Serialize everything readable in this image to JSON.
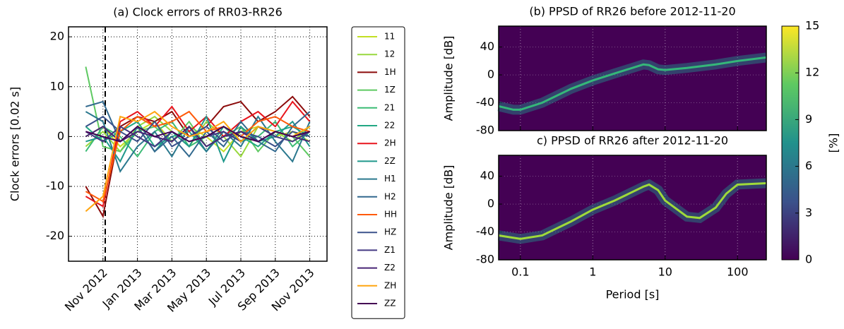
{
  "chart_data": [
    {
      "type": "line",
      "title": "(a) Clock errors of RR03-RR26",
      "ylabel": "Clock errors [0.02 s]",
      "x": [
        "2012-10",
        "2012-11",
        "2012-12",
        "2013-01",
        "2013-02",
        "2013-03",
        "2013-04",
        "2013-05",
        "2013-06",
        "2013-07",
        "2013-08",
        "2013-09",
        "2013-10",
        "2013-11"
      ],
      "xlim": [
        "2012-09",
        "2013-12"
      ],
      "xticks": [
        {
          "value": "2012-11",
          "label": "Nov 2012"
        },
        {
          "value": "2013-01",
          "label": "Jan 2013"
        },
        {
          "value": "2013-03",
          "label": "Mar 2013"
        },
        {
          "value": "2013-05",
          "label": "May 2013"
        },
        {
          "value": "2013-07",
          "label": "Jul 2013"
        },
        {
          "value": "2013-09",
          "label": "Sep 2013"
        },
        {
          "value": "2013-11",
          "label": "Nov 2013"
        }
      ],
      "ylim": [
        -25,
        22
      ],
      "yticks": [
        -20,
        -10,
        0,
        10,
        20
      ],
      "grid": true,
      "legend": "outside right",
      "series": [
        {
          "name": "11",
          "color": "#c2df23",
          "values": [
            0,
            2,
            -2,
            1,
            3,
            -1,
            2,
            0,
            -3,
            1,
            2,
            0,
            1,
            -1
          ]
        },
        {
          "name": "12",
          "color": "#98d83e",
          "values": [
            -2,
            1,
            -3,
            2,
            4,
            1,
            -2,
            3,
            0,
            -4,
            2,
            1,
            -1,
            2
          ]
        },
        {
          "name": "1H",
          "color": "#8b0a0a",
          "values": [
            -10,
            -16,
            2,
            4,
            3,
            5,
            0,
            2,
            6,
            7,
            3,
            5,
            8,
            4
          ]
        },
        {
          "name": "1Z",
          "color": "#5ec962",
          "values": [
            14,
            -2,
            -3,
            1,
            2,
            -1,
            3,
            -2,
            0,
            2,
            -3,
            1,
            0,
            -4
          ]
        },
        {
          "name": "21",
          "color": "#3bbb75",
          "values": [
            -3,
            2,
            0,
            -4,
            1,
            3,
            -2,
            0,
            2,
            -1,
            0,
            3,
            -2,
            1
          ]
        },
        {
          "name": "22",
          "color": "#22a884",
          "values": [
            2,
            -1,
            1,
            3,
            -2,
            0,
            1,
            -3,
            2,
            0,
            -2,
            1,
            2,
            0
          ]
        },
        {
          "name": "2H",
          "color": "#e8141c",
          "values": [
            -12,
            -14,
            3,
            5,
            2,
            6,
            1,
            4,
            0,
            3,
            5,
            2,
            7,
            3
          ]
        },
        {
          "name": "2Z",
          "color": "#1f988b",
          "values": [
            -1,
            0,
            -5,
            2,
            -3,
            1,
            -2,
            4,
            -5,
            2,
            -1,
            0,
            3,
            -2
          ]
        },
        {
          "name": "H1",
          "color": "#2a788e",
          "values": [
            5,
            3,
            -7,
            -2,
            1,
            -4,
            2,
            -3,
            1,
            -2,
            4,
            -1,
            -5,
            3
          ]
        },
        {
          "name": "H2",
          "color": "#31688e",
          "values": [
            6,
            7,
            -1,
            2,
            -3,
            0,
            -4,
            1,
            -2,
            3,
            -1,
            -3,
            2,
            5
          ]
        },
        {
          "name": "HH",
          "color": "#ff5a0a",
          "values": [
            -11,
            -13,
            1,
            4,
            2,
            3,
            5,
            1,
            2,
            0,
            3,
            4,
            2,
            1
          ]
        },
        {
          "name": "HZ",
          "color": "#3b528b",
          "values": [
            2,
            4,
            1,
            -1,
            3,
            -2,
            0,
            2,
            -1,
            1,
            0,
            -2,
            1,
            0
          ]
        },
        {
          "name": "Z1",
          "color": "#443983",
          "values": [
            1,
            -1,
            2,
            0,
            -2,
            1,
            -1,
            0,
            1,
            -1,
            2,
            0,
            -1,
            1
          ]
        },
        {
          "name": "Z2",
          "color": "#482475",
          "values": [
            0,
            2,
            -1,
            1,
            0,
            -1,
            2,
            -2,
            0,
            1,
            -1,
            1,
            0,
            -1
          ]
        },
        {
          "name": "ZH",
          "color": "#ffa510",
          "values": [
            -15,
            -12,
            4,
            3,
            5,
            2,
            0,
            1,
            3,
            -1,
            2,
            1,
            0,
            2
          ]
        },
        {
          "name": "ZZ",
          "color": "#440154",
          "values": [
            1,
            0,
            -1,
            2,
            0,
            1,
            -1,
            0,
            2,
            0,
            -1,
            1,
            0,
            1
          ]
        }
      ]
    },
    {
      "type": "ppsd",
      "title": "(b) PPSD of RR26 before 2012-11-20",
      "ylabel": "Amplitude [dB]",
      "xlog": true,
      "background": "#440154",
      "color": "#35b779",
      "x": [
        0.05,
        0.08,
        0.1,
        0.2,
        0.5,
        1,
        2,
        5,
        6,
        8,
        10,
        20,
        50,
        100,
        250
      ],
      "values": [
        -45,
        -50,
        -50,
        -40,
        -20,
        -8,
        2,
        15,
        14,
        8,
        7,
        10,
        15,
        20,
        25
      ],
      "xlim": [
        0.05,
        250
      ],
      "xticks": [
        0.1,
        1,
        10,
        100
      ],
      "ylim": [
        -80,
        70
      ],
      "yticks": [
        -80,
        -40,
        0,
        40
      ]
    },
    {
      "type": "ppsd",
      "title": "c) PPSD of RR26 after 2012-11-20",
      "ylabel": "Amplitude [dB]",
      "xlabel": "Period [s]",
      "xlog": true,
      "background": "#440154",
      "color": "#9fda3a",
      "x": [
        0.05,
        0.1,
        0.2,
        0.5,
        1,
        2,
        5,
        6,
        8,
        10,
        20,
        30,
        50,
        70,
        100,
        250
      ],
      "values": [
        -45,
        -50,
        -45,
        -25,
        -8,
        5,
        25,
        28,
        20,
        5,
        -18,
        -20,
        -5,
        15,
        28,
        30
      ],
      "xlim": [
        0.05,
        250
      ],
      "xticks": [
        {
          "value": 0.1,
          "label": "0.1"
        },
        1,
        10,
        100
      ],
      "ylim": [
        -80,
        70
      ],
      "yticks": [
        -80,
        -40,
        0,
        40
      ]
    },
    {
      "type": "colorbar",
      "label": "[%]",
      "ylim": [
        0,
        15
      ],
      "yticks": [
        0,
        3,
        6,
        9,
        12,
        15
      ],
      "colors": [
        "#440154",
        "#3b528b",
        "#21918c",
        "#5ec962",
        "#fde725"
      ]
    }
  ]
}
